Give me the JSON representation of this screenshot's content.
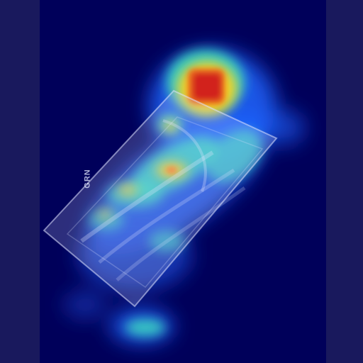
{
  "image": {
    "kind": "heatmap-overlay",
    "colors": {
      "border": "#1a1a5e",
      "background": "#00005a",
      "hot": "#d2231e",
      "warm": "#ffd21e",
      "mid": "#3cdcbe",
      "cool": "#1e64ff",
      "overlay": "#cfd3f5"
    },
    "logo_text": "GRN"
  }
}
